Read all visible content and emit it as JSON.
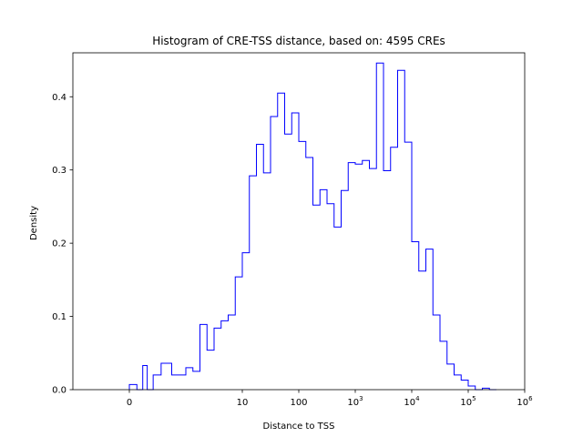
{
  "chart_data": {
    "type": "histogram",
    "title": "Histogram of CRE-TSS distance, based on: 4595 CREs",
    "xlabel": "Distance to TSS",
    "ylabel": "Density",
    "xscale": "symlog",
    "xlim": [
      -1,
      1000000
    ],
    "ylim": [
      0,
      0.46
    ],
    "x_ticks": [
      {
        "value": 0,
        "base": "0",
        "exp": ""
      },
      {
        "value": 10,
        "base": "10",
        "exp": ""
      },
      {
        "value": 100,
        "base": "100",
        "exp": ""
      },
      {
        "value": 1000,
        "base": "10",
        "exp": "3"
      },
      {
        "value": 10000,
        "base": "10",
        "exp": "4"
      },
      {
        "value": 100000,
        "base": "10",
        "exp": "5"
      },
      {
        "value": 1000000,
        "base": "10",
        "exp": "6"
      }
    ],
    "y_ticks": [
      {
        "value": 0.0,
        "label": "0.0"
      },
      {
        "value": 0.1,
        "label": "0.1"
      },
      {
        "value": 0.2,
        "label": "0.2"
      },
      {
        "value": 0.3,
        "label": "0.3"
      },
      {
        "value": 0.4,
        "label": "0.4"
      }
    ],
    "color": "#0000ff",
    "bins_start": 0,
    "bins_per_decade": 8,
    "values": [
      0.007,
      0.0,
      0.0,
      0.033,
      0.0,
      0.02,
      0.036,
      0.02,
      0.03,
      0.025,
      0.089,
      0.054,
      0.084,
      0.094,
      0.102,
      0.154,
      0.187,
      0.292,
      0.335,
      0.296,
      0.373,
      0.405,
      0.349,
      0.378,
      0.339,
      0.317,
      0.252,
      0.273,
      0.254,
      0.222,
      0.272,
      0.31,
      0.308,
      0.313,
      0.302,
      0.446,
      0.299,
      0.331,
      0.436,
      0.338,
      0.202,
      0.162,
      0.192,
      0.102,
      0.066,
      0.035,
      0.02,
      0.013,
      0.005,
      0.0,
      0.002,
      0.0
    ]
  }
}
